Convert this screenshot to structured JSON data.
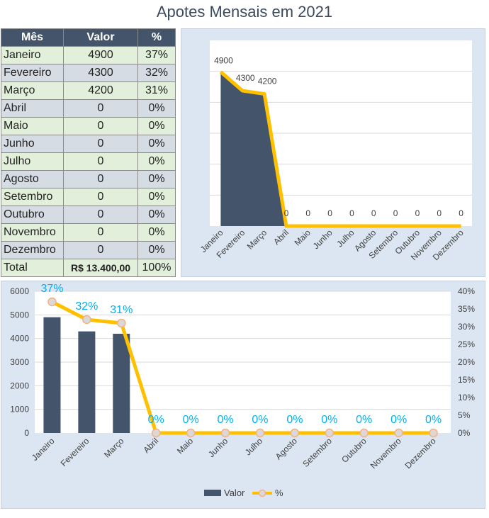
{
  "title": "Apotes Mensais em 2021",
  "table": {
    "headers": [
      "Mês",
      "Valor",
      "%"
    ],
    "rows": [
      [
        "Janeiro",
        "4900",
        "37%"
      ],
      [
        "Fevereiro",
        "4300",
        "32%"
      ],
      [
        "Março",
        "4200",
        "31%"
      ],
      [
        "Abril",
        "0",
        "0%"
      ],
      [
        "Maio",
        "0",
        "0%"
      ],
      [
        "Junho",
        "0",
        "0%"
      ],
      [
        "Julho",
        "0",
        "0%"
      ],
      [
        "Agosto",
        "0",
        "0%"
      ],
      [
        "Setembro",
        "0",
        "0%"
      ],
      [
        "Outubro",
        "0",
        "0%"
      ],
      [
        "Novembro",
        "0",
        "0%"
      ],
      [
        "Dezembro",
        "0",
        "0%"
      ]
    ],
    "total": [
      "Total",
      "R$ 13.400,00",
      "100%"
    ]
  },
  "colors": {
    "bar": "#44546a",
    "line": "#ffc000",
    "marker_fill": "#d9d9d9",
    "marker_edge": "#f4b183",
    "pct_label": "#00b0f0",
    "grid": "#d9d9d9"
  },
  "chart_data": [
    {
      "type": "area",
      "categories": [
        "Janeiro",
        "Fevereiro",
        "Março",
        "Abril",
        "Maio",
        "Junho",
        "Julho",
        "Agosto",
        "Setembro",
        "Outubro",
        "Novembro",
        "Dezembro"
      ],
      "series": [
        {
          "values": [
            4900,
            4300,
            4200,
            0,
            0,
            0,
            0,
            0,
            0,
            0,
            0,
            0
          ]
        },
        {
          "values": [
            4900,
            4300,
            4200,
            0,
            0,
            0,
            0,
            0,
            0,
            0,
            0,
            0
          ]
        }
      ],
      "data_labels": [
        "4900",
        "4300",
        "4200",
        "0",
        "0",
        "0",
        "0",
        "0",
        "0",
        "0",
        "0",
        "0"
      ],
      "ylim": [
        0,
        5000
      ],
      "grid": true
    },
    {
      "type": "bar",
      "categories": [
        "Janeiro",
        "Fevereiro",
        "Março",
        "Abril",
        "Maio",
        "Junho",
        "Julho",
        "Agosto",
        "Setembro",
        "Outubro",
        "Novembro",
        "Dezembro"
      ],
      "series": [
        {
          "name": "Valor",
          "values": [
            4900,
            4300,
            4200,
            0,
            0,
            0,
            0,
            0,
            0,
            0,
            0,
            0
          ]
        },
        {
          "name": "%",
          "values": [
            0.37,
            0.32,
            0.31,
            0,
            0,
            0,
            0,
            0,
            0,
            0,
            0,
            0
          ],
          "axis": "secondary"
        }
      ],
      "data_labels": [
        "37%",
        "32%",
        "31%",
        "0%",
        "0%",
        "0%",
        "0%",
        "0%",
        "0%",
        "0%",
        "0%",
        "0%"
      ],
      "ylim": [
        0,
        6000
      ],
      "yticks": [
        "0",
        "1000",
        "2000",
        "3000",
        "4000",
        "5000",
        "6000"
      ],
      "y2lim": [
        0,
        0.4
      ],
      "y2ticks": [
        "0%",
        "5%",
        "10%",
        "15%",
        "20%",
        "25%",
        "30%",
        "35%",
        "40%"
      ],
      "legend": "bottom",
      "grid": true
    }
  ]
}
